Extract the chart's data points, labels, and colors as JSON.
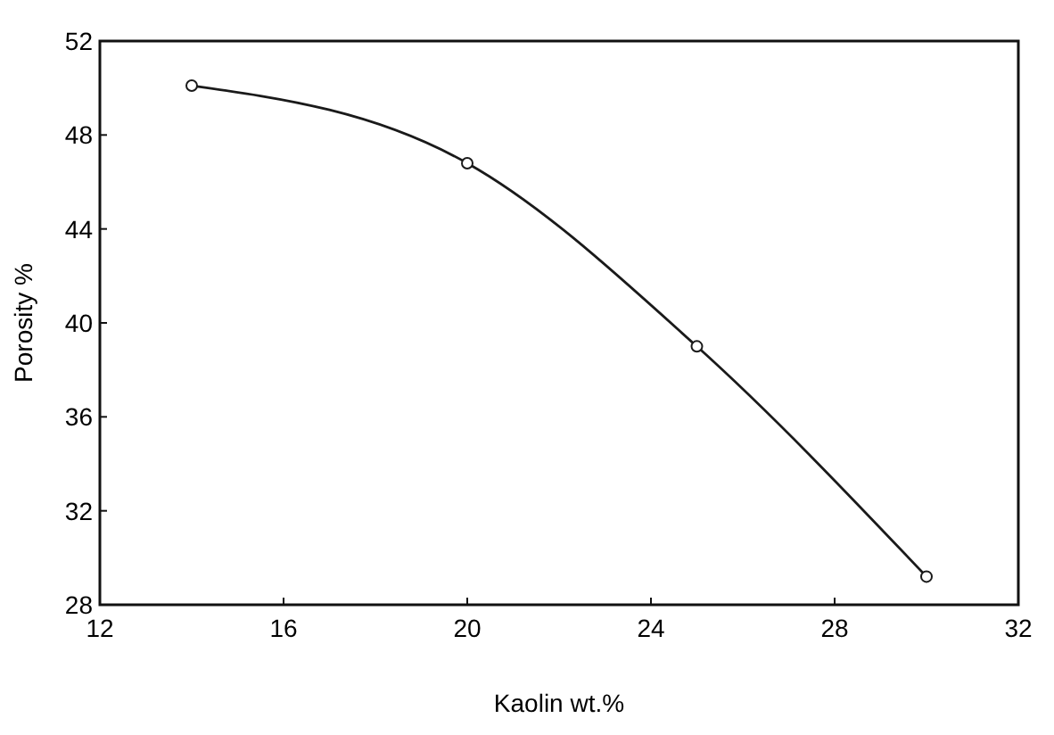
{
  "chart_data": {
    "type": "line",
    "xlabel": "Kaolin wt.%",
    "ylabel": "Porosity %",
    "x": [
      14,
      20,
      25,
      30
    ],
    "series": [
      {
        "color": "#1a1a1a",
        "values": [
          50.1,
          46.8,
          39.0,
          29.2
        ]
      }
    ],
    "xlim": [
      12,
      32
    ],
    "xticks": [
      12,
      16,
      20,
      24,
      28,
      32
    ],
    "ylim": [
      28,
      52
    ],
    "yticks": [
      28,
      32,
      36,
      40,
      44,
      48,
      52
    ],
    "grid": false,
    "marker": "circle",
    "line_style": "solid"
  }
}
